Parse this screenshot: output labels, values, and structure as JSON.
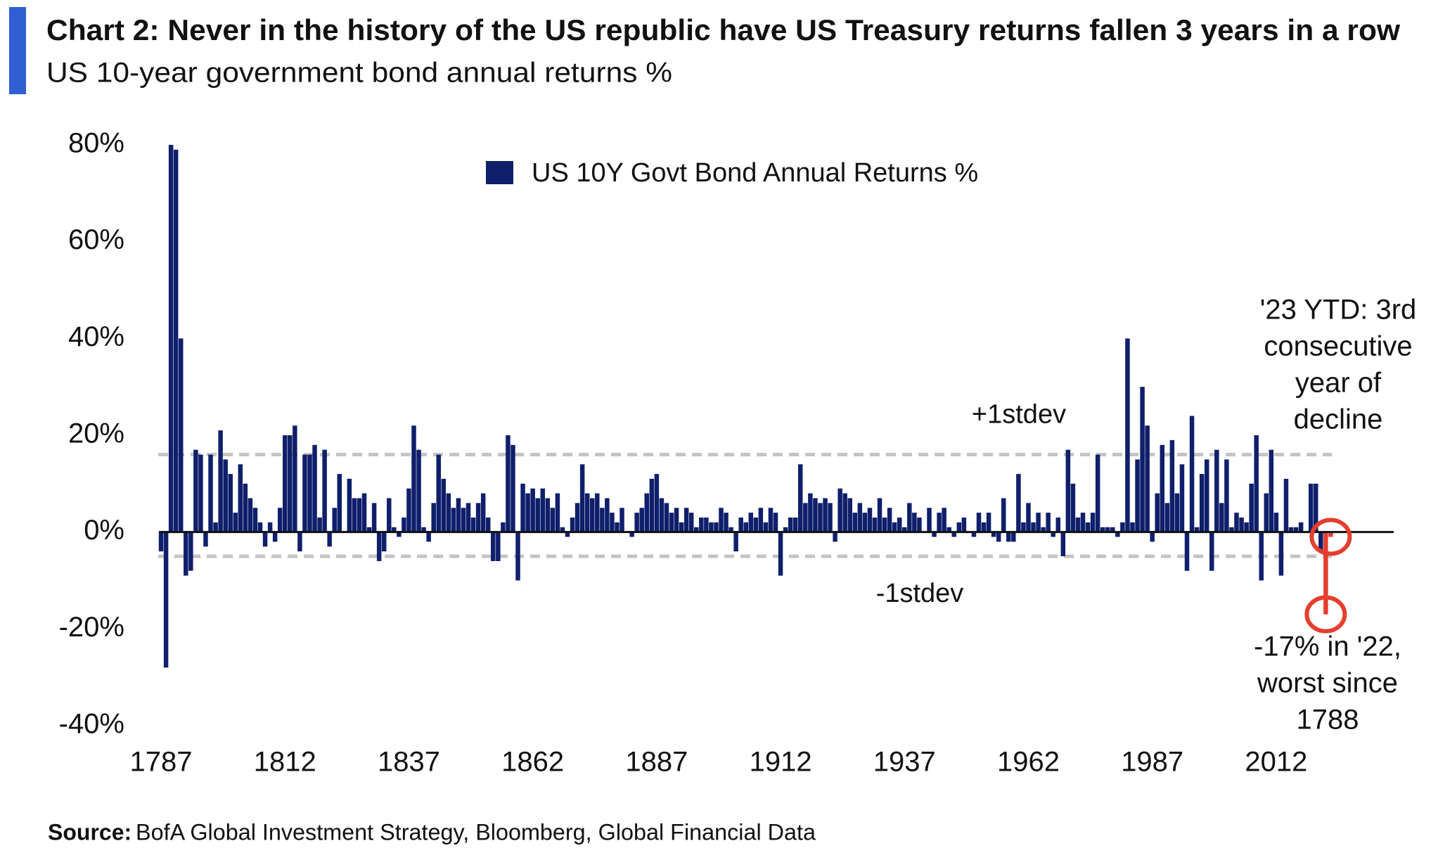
{
  "chart_data": {
    "type": "bar",
    "title": "Chart 2: Never in the history of the US republic have US Treasury returns fallen 3 years in a row",
    "subtitle": "US 10-year government bond annual returns %",
    "source_label": "Source:",
    "source": "BofA Global Investment Strategy, Bloomberg, Global Financial Data",
    "legend": "top",
    "xlim": [
      1786,
      2035
    ],
    "ylim": [
      -40,
      80
    ],
    "xticks": [
      1787,
      1812,
      1837,
      1862,
      1887,
      1912,
      1937,
      1962,
      1987,
      2012
    ],
    "yticks": [
      {
        "value": -40,
        "label": "-40%"
      },
      {
        "value": -20,
        "label": "-20%"
      },
      {
        "value": 0,
        "label": "0%"
      },
      {
        "value": 20,
        "label": "20%"
      },
      {
        "value": 40,
        "label": "40%"
      },
      {
        "value": 60,
        "label": "60%"
      },
      {
        "value": 80,
        "label": "80%"
      }
    ],
    "reference_lines": [
      {
        "value": 16,
        "label": "+1stdev"
      },
      {
        "value": -5,
        "label": "-1stdev"
      }
    ],
    "annotations": [
      {
        "x": 2023,
        "color": "#e53e2f",
        "lines": [
          "'23 YTD: 3rd",
          "consecutive",
          "year of",
          "decline"
        ]
      },
      {
        "x": 2022,
        "color": "#e53e2f",
        "lines": [
          "-17% in '22,",
          "worst since",
          "1788"
        ]
      }
    ],
    "x": [
      1787,
      1788,
      1789,
      1790,
      1791,
      1792,
      1793,
      1794,
      1795,
      1796,
      1797,
      1798,
      1799,
      1800,
      1801,
      1802,
      1803,
      1804,
      1805,
      1806,
      1807,
      1808,
      1809,
      1810,
      1811,
      1812,
      1813,
      1814,
      1815,
      1816,
      1817,
      1818,
      1819,
      1820,
      1821,
      1822,
      1823,
      1824,
      1825,
      1826,
      1827,
      1828,
      1829,
      1830,
      1831,
      1832,
      1833,
      1834,
      1835,
      1836,
      1837,
      1838,
      1839,
      1840,
      1841,
      1842,
      1843,
      1844,
      1845,
      1846,
      1847,
      1848,
      1849,
      1850,
      1851,
      1852,
      1853,
      1854,
      1855,
      1856,
      1857,
      1858,
      1859,
      1860,
      1861,
      1862,
      1863,
      1864,
      1865,
      1866,
      1867,
      1868,
      1869,
      1870,
      1871,
      1872,
      1873,
      1874,
      1875,
      1876,
      1877,
      1878,
      1879,
      1880,
      1881,
      1882,
      1883,
      1884,
      1885,
      1886,
      1887,
      1888,
      1889,
      1890,
      1891,
      1892,
      1893,
      1894,
      1895,
      1896,
      1897,
      1898,
      1899,
      1900,
      1901,
      1902,
      1903,
      1904,
      1905,
      1906,
      1907,
      1908,
      1909,
      1910,
      1911,
      1912,
      1913,
      1914,
      1915,
      1916,
      1917,
      1918,
      1919,
      1920,
      1921,
      1922,
      1923,
      1924,
      1925,
      1926,
      1927,
      1928,
      1929,
      1930,
      1931,
      1932,
      1933,
      1934,
      1935,
      1936,
      1937,
      1938,
      1939,
      1940,
      1941,
      1942,
      1943,
      1944,
      1945,
      1946,
      1947,
      1948,
      1949,
      1950,
      1951,
      1952,
      1953,
      1954,
      1955,
      1956,
      1957,
      1958,
      1959,
      1960,
      1961,
      1962,
      1963,
      1964,
      1965,
      1966,
      1967,
      1968,
      1969,
      1970,
      1971,
      1972,
      1973,
      1974,
      1975,
      1976,
      1977,
      1978,
      1979,
      1980,
      1981,
      1982,
      1983,
      1984,
      1985,
      1986,
      1987,
      1988,
      1989,
      1990,
      1991,
      1992,
      1993,
      1994,
      1995,
      1996,
      1997,
      1998,
      1999,
      2000,
      2001,
      2002,
      2003,
      2004,
      2005,
      2006,
      2007,
      2008,
      2009,
      2010,
      2011,
      2012,
      2013,
      2014,
      2015,
      2016,
      2017,
      2018,
      2019,
      2020,
      2021,
      2022,
      2023
    ],
    "series": [
      {
        "name": "US 10Y Govt Bond Annual Returns %",
        "color": "#0f1f6b",
        "values": [
          -4,
          -28,
          80,
          79,
          40,
          -9,
          -8,
          17,
          16,
          -3,
          16,
          2,
          21,
          15,
          12,
          4,
          14,
          10,
          7,
          5,
          2,
          -3,
          2,
          -2,
          5,
          20,
          20,
          22,
          -4,
          16,
          16,
          18,
          3,
          17,
          -3,
          5,
          12,
          0,
          11,
          7,
          7,
          8,
          1,
          6,
          -6,
          -4,
          7,
          1,
          -1,
          3,
          9,
          22,
          17,
          1,
          -2,
          6,
          16,
          11,
          8,
          5,
          7,
          5,
          6,
          3,
          6,
          8,
          3,
          -6,
          -6,
          2,
          20,
          18,
          -10,
          10,
          8,
          9,
          7,
          9,
          7,
          5,
          8,
          1,
          -1,
          3,
          6,
          14,
          8,
          7,
          8,
          5,
          7,
          4,
          2,
          5,
          0,
          -1,
          4,
          5,
          8,
          11,
          12,
          7,
          6,
          4,
          5,
          2,
          5,
          4,
          1,
          3,
          3,
          2,
          2,
          5,
          4,
          1,
          -4,
          3,
          2,
          4,
          3,
          5,
          2,
          5,
          4,
          -9,
          1,
          3,
          3,
          14,
          6,
          8,
          7,
          6,
          7,
          6,
          -2,
          9,
          8,
          7,
          4,
          6,
          4,
          5,
          3,
          7,
          3,
          5,
          2,
          3,
          1,
          6,
          4,
          3,
          0,
          5,
          -1,
          4,
          5,
          1,
          -1,
          2,
          3,
          0,
          -1,
          4,
          2,
          4,
          -1,
          -2,
          7,
          -2,
          -2,
          12,
          2,
          6,
          2,
          4,
          1,
          4,
          -1,
          3,
          -5,
          17,
          10,
          3,
          4,
          2,
          4,
          16,
          1,
          1,
          1,
          -1,
          2,
          40,
          2,
          15,
          30,
          22,
          -2,
          8,
          18,
          6,
          19,
          8,
          14,
          -8,
          24,
          1,
          12,
          15,
          -8,
          17,
          6,
          15,
          1,
          4,
          3,
          2,
          10,
          20,
          -10,
          8,
          17,
          4,
          -9,
          11,
          1,
          1,
          2,
          0,
          10,
          10,
          -4,
          -17,
          -1
        ]
      }
    ]
  }
}
